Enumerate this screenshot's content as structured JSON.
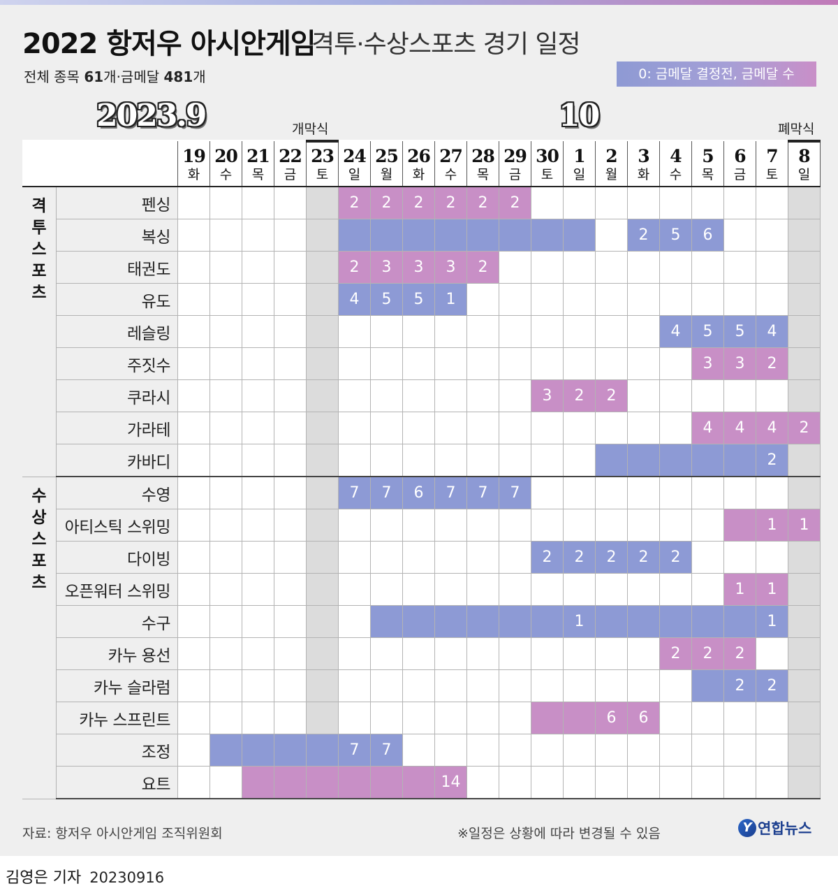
{
  "header": {
    "title_main": "2022 항저우 아시안게임",
    "title_sub": "격투·수상스포츠 경기 일정",
    "summary_prefix": "전체 종목 ",
    "summary_events": "61",
    "summary_mid": "개·금메달 ",
    "summary_golds": "481",
    "summary_suffix": "개",
    "legend": "0: 금메달 결정전, 금메달 수"
  },
  "calendar": {
    "month_sep": "2023.9",
    "month_oct": "10",
    "opening": "개막식",
    "closing": "폐막식",
    "days": [
      {
        "num": "19",
        "dow": "화"
      },
      {
        "num": "20",
        "dow": "수"
      },
      {
        "num": "21",
        "dow": "목"
      },
      {
        "num": "22",
        "dow": "금"
      },
      {
        "num": "23",
        "dow": "토"
      },
      {
        "num": "24",
        "dow": "일"
      },
      {
        "num": "25",
        "dow": "월"
      },
      {
        "num": "26",
        "dow": "화"
      },
      {
        "num": "27",
        "dow": "수"
      },
      {
        "num": "28",
        "dow": "목"
      },
      {
        "num": "29",
        "dow": "금"
      },
      {
        "num": "30",
        "dow": "토"
      },
      {
        "num": "1",
        "dow": "일"
      },
      {
        "num": "2",
        "dow": "월"
      },
      {
        "num": "3",
        "dow": "화"
      },
      {
        "num": "4",
        "dow": "수"
      },
      {
        "num": "5",
        "dow": "목"
      },
      {
        "num": "6",
        "dow": "금"
      },
      {
        "num": "7",
        "dow": "토"
      },
      {
        "num": "8",
        "dow": "일"
      }
    ]
  },
  "groups": [
    {
      "name": "격투스포츠",
      "sports": [
        {
          "name": "펜싱",
          "cells": [
            "",
            "",
            "",
            "",
            "",
            "p2",
            "p2",
            "p2",
            "p2",
            "p2",
            "p2",
            "",
            "",
            "",
            "",
            "",
            "",
            "",
            "",
            ""
          ]
        },
        {
          "name": "복싱",
          "cells": [
            "",
            "",
            "",
            "",
            "",
            "b",
            "b",
            "b",
            "b",
            "b",
            "b",
            "b",
            "b",
            "",
            "b2",
            "b5",
            "b6",
            "",
            "",
            ""
          ]
        },
        {
          "name": "태권도",
          "cells": [
            "",
            "",
            "",
            "",
            "",
            "p2",
            "p3",
            "p3",
            "p3",
            "p2",
            "",
            "",
            "",
            "",
            "",
            "",
            "",
            "",
            "",
            ""
          ]
        },
        {
          "name": "유도",
          "cells": [
            "",
            "",
            "",
            "",
            "",
            "b4",
            "b5",
            "b5",
            "b1",
            "",
            "",
            "",
            "",
            "",
            "",
            "",
            "",
            "",
            "",
            ""
          ]
        },
        {
          "name": "레슬링",
          "cells": [
            "",
            "",
            "",
            "",
            "",
            "",
            "",
            "",
            "",
            "",
            "",
            "",
            "",
            "",
            "",
            "b4",
            "b5",
            "b5",
            "b4",
            ""
          ]
        },
        {
          "name": "주짓수",
          "cells": [
            "",
            "",
            "",
            "",
            "",
            "",
            "",
            "",
            "",
            "",
            "",
            "",
            "",
            "",
            "",
            "",
            "p3",
            "p3",
            "p2",
            ""
          ]
        },
        {
          "name": "쿠라시",
          "cells": [
            "",
            "",
            "",
            "",
            "",
            "",
            "",
            "",
            "",
            "",
            "",
            "p3",
            "p2",
            "p2",
            "",
            "",
            "",
            "",
            "",
            ""
          ]
        },
        {
          "name": "가라테",
          "cells": [
            "",
            "",
            "",
            "",
            "",
            "",
            "",
            "",
            "",
            "",
            "",
            "",
            "",
            "",
            "",
            "",
            "p4",
            "p4",
            "p4",
            "p2"
          ]
        },
        {
          "name": "카바디",
          "cells": [
            "",
            "",
            "",
            "",
            "",
            "",
            "",
            "",
            "",
            "",
            "",
            "",
            "",
            "b",
            "b",
            "b",
            "b",
            "b",
            "b2",
            ""
          ]
        }
      ]
    },
    {
      "name": "수상스포츠",
      "sports": [
        {
          "name": "수영",
          "cells": [
            "",
            "",
            "",
            "",
            "",
            "b7",
            "b7",
            "b6",
            "b7",
            "b7",
            "b7",
            "",
            "",
            "",
            "",
            "",
            "",
            "",
            "",
            ""
          ]
        },
        {
          "name": "아티스틱 스위밍",
          "cells": [
            "",
            "",
            "",
            "",
            "",
            "",
            "",
            "",
            "",
            "",
            "",
            "",
            "",
            "",
            "",
            "",
            "",
            "p",
            "p1",
            "p1"
          ]
        },
        {
          "name": "다이빙",
          "cells": [
            "",
            "",
            "",
            "",
            "",
            "",
            "",
            "",
            "",
            "",
            "",
            "b2",
            "b2",
            "b2",
            "b2",
            "b2",
            "",
            "",
            "",
            ""
          ]
        },
        {
          "name": "오픈워터 스위밍",
          "cells": [
            "",
            "",
            "",
            "",
            "",
            "",
            "",
            "",
            "",
            "",
            "",
            "",
            "",
            "",
            "",
            "",
            "",
            "p1",
            "p1",
            ""
          ]
        },
        {
          "name": "수구",
          "cells": [
            "",
            "",
            "",
            "",
            "",
            "",
            "b",
            "b",
            "b",
            "b",
            "b",
            "b",
            "b1",
            "b",
            "b",
            "b",
            "b",
            "b",
            "b1",
            ""
          ]
        },
        {
          "name": "카누 용선",
          "cells": [
            "",
            "",
            "",
            "",
            "",
            "",
            "",
            "",
            "",
            "",
            "",
            "",
            "",
            "",
            "",
            "p2",
            "p2",
            "p2",
            "",
            ""
          ]
        },
        {
          "name": "카누 슬라럼",
          "cells": [
            "",
            "",
            "",
            "",
            "",
            "",
            "",
            "",
            "",
            "",
            "",
            "",
            "",
            "",
            "",
            "",
            "b",
            "b2",
            "b2",
            ""
          ]
        },
        {
          "name": "카누 스프린트",
          "cells": [
            "",
            "",
            "",
            "",
            "",
            "",
            "",
            "",
            "",
            "",
            "",
            "p",
            "p",
            "p6",
            "p6",
            "",
            "",
            "",
            "",
            ""
          ]
        },
        {
          "name": "조정",
          "cells": [
            "",
            "b",
            "b",
            "b",
            "b",
            "b7",
            "b7",
            "",
            "",
            "",
            "",
            "",
            "",
            "",
            "",
            "",
            "",
            "",
            "",
            ""
          ]
        },
        {
          "name": "요트",
          "cells": [
            "",
            "",
            "p",
            "p",
            "p",
            "p",
            "p",
            "p",
            "p14",
            "",
            "",
            "",
            "",
            "",
            "",
            "",
            "",
            "",
            "",
            ""
          ]
        }
      ]
    }
  ],
  "footer": {
    "source": "자료: 항저우 아시안게임 조직위원회",
    "note": "※일정은 상황에 따라 변경될 수 있음",
    "logo_mark": "Y",
    "logo_text": "연합뉴스",
    "byline": "김영은 기자",
    "date": "20230916"
  },
  "colors": {
    "blue_cell": "#8d9ad5",
    "pink_cell": "#c88fc6",
    "ceremony_column": "#dcdcdc"
  }
}
